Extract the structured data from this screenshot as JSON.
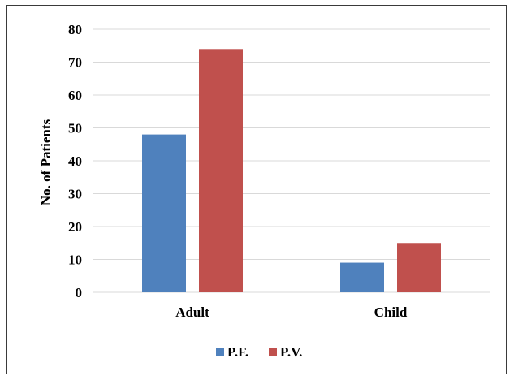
{
  "chart_data": {
    "type": "bar",
    "title": "",
    "xlabel": "",
    "ylabel": "No. of Patients",
    "categories": [
      "Adult",
      "Child"
    ],
    "series": [
      {
        "name": "P.F.",
        "values": [
          48,
          9
        ],
        "color": "#4f81bd"
      },
      {
        "name": "P.V.",
        "values": [
          74,
          15
        ],
        "color": "#c0504d"
      }
    ],
    "ylim": [
      0,
      80
    ],
    "yticks": [
      0,
      10,
      20,
      30,
      40,
      50,
      60,
      70,
      80
    ],
    "grid": true,
    "legend_position": "bottom",
    "gridline_color": "#d9d9d9"
  }
}
